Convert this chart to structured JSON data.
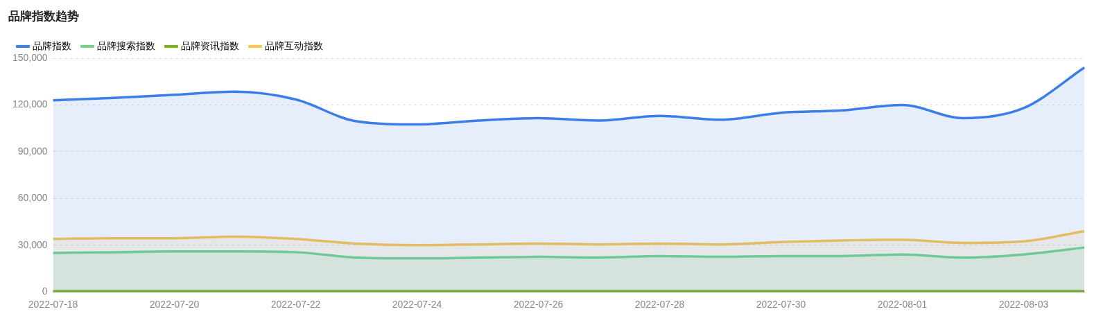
{
  "chart_data": {
    "type": "area",
    "title": "品牌指数趋势",
    "categories": [
      "2022-07-18",
      null,
      "2022-07-20",
      null,
      "2022-07-22",
      null,
      "2022-07-24",
      null,
      "2022-07-26",
      null,
      "2022-07-28",
      null,
      "2022-07-30",
      null,
      "2022-08-01",
      null,
      "2022-08-03",
      null
    ],
    "series": [
      {
        "name": "品牌指数",
        "color": "#3b7de9",
        "values": [
          123000,
          124500,
          126500,
          128500,
          123500,
          109500,
          107500,
          110000,
          111500,
          110000,
          113000,
          110500,
          115000,
          116500,
          120000,
          111500,
          118000,
          144000
        ]
      },
      {
        "name": "品牌搜索指数",
        "color": "#74d68b",
        "values": [
          25000,
          25500,
          26000,
          26000,
          25500,
          22000,
          21500,
          22000,
          22500,
          22000,
          23000,
          22500,
          23000,
          23000,
          24000,
          22000,
          24000,
          28500
        ]
      },
      {
        "name": "品牌资讯指数",
        "color": "#7cb518",
        "values": [
          500,
          500,
          500,
          500,
          500,
          500,
          500,
          500,
          500,
          500,
          500,
          500,
          500,
          500,
          500,
          500,
          500,
          500
        ]
      },
      {
        "name": "品牌互动指数",
        "color": "#fcc54e",
        "values": [
          34000,
          34500,
          34500,
          35500,
          34000,
          31000,
          30000,
          30500,
          31000,
          30500,
          31000,
          30500,
          32000,
          33000,
          33500,
          31500,
          32500,
          39000
        ]
      }
    ],
    "ylim": [
      0,
      150000
    ],
    "yticks": [
      {
        "value": 0,
        "label": "0"
      },
      {
        "value": 30000,
        "label": "30,000"
      },
      {
        "value": 60000,
        "label": "60,000"
      },
      {
        "value": 90000,
        "label": "90,000"
      },
      {
        "value": 120000,
        "label": "120,000"
      },
      {
        "value": 150000,
        "label": "150,000"
      }
    ],
    "grid": "y",
    "legend": "top left",
    "marker": "none",
    "line_style": "solid"
  }
}
